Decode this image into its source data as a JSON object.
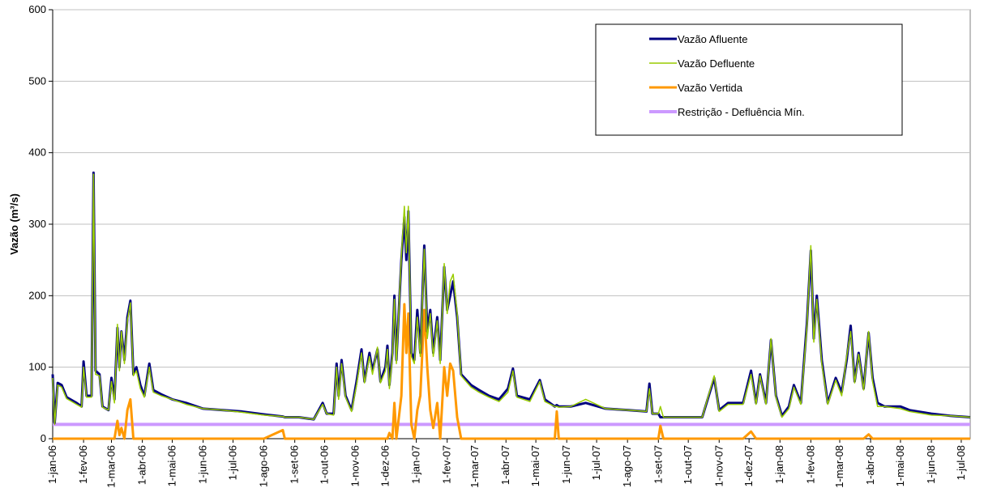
{
  "chart_data": {
    "type": "line",
    "y_label": "Vazão (m³/s)",
    "ylim": [
      0,
      600
    ],
    "yticks": [
      0,
      100,
      200,
      300,
      400,
      500,
      600
    ],
    "xlim": [
      "2006-01-01",
      "2008-07-10"
    ],
    "xticks": [
      {
        "value": "2006-01-01",
        "label": "1-jan-06"
      },
      {
        "value": "2006-02-01",
        "label": "1-fev-06"
      },
      {
        "value": "2006-03-01",
        "label": "1-mar-06"
      },
      {
        "value": "2006-04-01",
        "label": "1-abr-06"
      },
      {
        "value": "2006-05-01",
        "label": "1-mai-06"
      },
      {
        "value": "2006-06-01",
        "label": "1-jun-06"
      },
      {
        "value": "2006-07-01",
        "label": "1-jul-06"
      },
      {
        "value": "2006-08-01",
        "label": "1-ago-06"
      },
      {
        "value": "2006-09-01",
        "label": "1-set-06"
      },
      {
        "value": "2006-10-01",
        "label": "1-out-06"
      },
      {
        "value": "2006-11-01",
        "label": "1-nov-06"
      },
      {
        "value": "2006-12-01",
        "label": "1-dez-06"
      },
      {
        "value": "2007-01-01",
        "label": "1-jan-07"
      },
      {
        "value": "2007-02-01",
        "label": "1-fev-07"
      },
      {
        "value": "2007-03-01",
        "label": "1-mar-07"
      },
      {
        "value": "2007-04-01",
        "label": "1-abr-07"
      },
      {
        "value": "2007-05-01",
        "label": "1-mai-07"
      },
      {
        "value": "2007-06-01",
        "label": "1-jun-07"
      },
      {
        "value": "2007-07-01",
        "label": "1-jul-07"
      },
      {
        "value": "2007-08-01",
        "label": "1-ago-07"
      },
      {
        "value": "2007-09-01",
        "label": "1-set-07"
      },
      {
        "value": "2007-10-01",
        "label": "1-out-07"
      },
      {
        "value": "2007-11-01",
        "label": "1-nov-07"
      },
      {
        "value": "2007-12-01",
        "label": "1-dez-07"
      },
      {
        "value": "2008-01-01",
        "label": "1-jan-08"
      },
      {
        "value": "2008-02-01",
        "label": "1-fev-08"
      },
      {
        "value": "2008-03-01",
        "label": "1-mar-08"
      },
      {
        "value": "2008-04-01",
        "label": "1-abr-08"
      },
      {
        "value": "2008-05-01",
        "label": "1-mai-08"
      },
      {
        "value": "2008-06-01",
        "label": "1-jun-08"
      },
      {
        "value": "2008-07-01",
        "label": "1-jul-08"
      }
    ],
    "grid": true,
    "legend": "top-right",
    "x": [
      "2006-01-01",
      "2006-01-03",
      "2006-01-06",
      "2006-01-10",
      "2006-01-15",
      "2006-01-25",
      "2006-01-30",
      "2006-02-01",
      "2006-02-04",
      "2006-02-09",
      "2006-02-11",
      "2006-02-13",
      "2006-02-17",
      "2006-02-20",
      "2006-02-26",
      "2006-03-01",
      "2006-03-04",
      "2006-03-07",
      "2006-03-09",
      "2006-03-11",
      "2006-03-14",
      "2006-03-17",
      "2006-03-20",
      "2006-03-23",
      "2006-03-26",
      "2006-03-30",
      "2006-04-03",
      "2006-04-08",
      "2006-04-12",
      "2006-04-20",
      "2006-05-01",
      "2006-05-15",
      "2006-06-01",
      "2006-06-20",
      "2006-07-10",
      "2006-08-01",
      "2006-08-20",
      "2006-08-22",
      "2006-09-05",
      "2006-09-20",
      "2006-09-29",
      "2006-10-03",
      "2006-10-10",
      "2006-10-13",
      "2006-10-15",
      "2006-10-18",
      "2006-10-22",
      "2006-10-28",
      "2006-11-02",
      "2006-11-07",
      "2006-11-10",
      "2006-11-15",
      "2006-11-18",
      "2006-11-23",
      "2006-11-26",
      "2006-12-01",
      "2006-12-03",
      "2006-12-05",
      "2006-12-08",
      "2006-12-10",
      "2006-12-12",
      "2006-12-17",
      "2006-12-20",
      "2006-12-22",
      "2006-12-24",
      "2006-12-27",
      "2006-12-30",
      "2007-01-02",
      "2007-01-05",
      "2007-01-09",
      "2007-01-12",
      "2007-01-15",
      "2007-01-18",
      "2007-01-22",
      "2007-01-25",
      "2007-01-29",
      "2007-02-01",
      "2007-02-04",
      "2007-02-07",
      "2007-02-11",
      "2007-02-15",
      "2007-02-25",
      "2007-03-05",
      "2007-03-15",
      "2007-03-25",
      "2007-04-03",
      "2007-04-08",
      "2007-04-12",
      "2007-04-25",
      "2007-05-05",
      "2007-05-10",
      "2007-05-20",
      "2007-05-22",
      "2007-05-24",
      "2007-06-05",
      "2007-06-20",
      "2007-07-10",
      "2007-08-01",
      "2007-08-20",
      "2007-08-23",
      "2007-08-26",
      "2007-09-01",
      "2007-09-03",
      "2007-09-06",
      "2007-09-25",
      "2007-10-15",
      "2007-10-27",
      "2007-11-01",
      "2007-11-10",
      "2007-11-25",
      "2007-12-03",
      "2007-12-08",
      "2007-12-12",
      "2007-12-18",
      "2007-12-23",
      "2007-12-28",
      "2008-01-03",
      "2008-01-10",
      "2008-01-15",
      "2008-01-22",
      "2008-01-28",
      "2008-02-01",
      "2008-02-04",
      "2008-02-07",
      "2008-02-12",
      "2008-02-18",
      "2008-02-26",
      "2008-03-03",
      "2008-03-08",
      "2008-03-12",
      "2008-03-16",
      "2008-03-20",
      "2008-03-25",
      "2008-03-30",
      "2008-04-03",
      "2008-04-08",
      "2008-04-15",
      "2008-05-01",
      "2008-05-10",
      "2008-06-01",
      "2008-06-20",
      "2008-07-10"
    ],
    "series": [
      {
        "name": "Vazão Afluente",
        "color": "#000080",
        "width": 3,
        "values": [
          90,
          22,
          78,
          75,
          58,
          50,
          45,
          108,
          60,
          60,
          372,
          95,
          90,
          45,
          40,
          85,
          55,
          155,
          100,
          150,
          110,
          170,
          193,
          90,
          100,
          75,
          60,
          105,
          68,
          62,
          55,
          50,
          42,
          40,
          38,
          34,
          31,
          30,
          30,
          27,
          50,
          35,
          35,
          105,
          60,
          110,
          60,
          40,
          80,
          125,
          80,
          120,
          95,
          125,
          80,
          100,
          130,
          75,
          120,
          200,
          110,
          250,
          310,
          250,
          318,
          120,
          110,
          180,
          120,
          270,
          150,
          180,
          120,
          170,
          110,
          240,
          180,
          200,
          220,
          170,
          90,
          75,
          68,
          60,
          55,
          70,
          98,
          60,
          55,
          82,
          55,
          45,
          47,
          45,
          45,
          50,
          42,
          40,
          38,
          77,
          35,
          35,
          30,
          30,
          30,
          30,
          85,
          40,
          50,
          50,
          95,
          50,
          90,
          50,
          138,
          60,
          32,
          45,
          75,
          50,
          160,
          263,
          140,
          200,
          110,
          50,
          85,
          65,
          110,
          158,
          80,
          120,
          70,
          148,
          85,
          50,
          45,
          45,
          40,
          35,
          32,
          30
        ]
      },
      {
        "name": "Vazão Defluente",
        "color": "#99cc00",
        "width": 1.5,
        "values": [
          85,
          20,
          75,
          72,
          56,
          48,
          44,
          100,
          58,
          58,
          370,
          90,
          88,
          44,
          40,
          80,
          50,
          160,
          95,
          150,
          105,
          165,
          190,
          88,
          95,
          70,
          58,
          100,
          65,
          60,
          55,
          48,
          42,
          40,
          37,
          33,
          31,
          30,
          30,
          27,
          48,
          35,
          33,
          100,
          55,
          105,
          58,
          38,
          75,
          120,
          78,
          115,
          90,
          128,
          78,
          95,
          125,
          70,
          115,
          195,
          105,
          255,
          325,
          260,
          325,
          115,
          105,
          170,
          115,
          265,
          140,
          175,
          115,
          165,
          105,
          245,
          175,
          220,
          230,
          175,
          88,
          72,
          65,
          58,
          52,
          65,
          95,
          58,
          52,
          80,
          52,
          45,
          45,
          44,
          45,
          55,
          42,
          40,
          38,
          70,
          35,
          35,
          45,
          30,
          30,
          30,
          88,
          38,
          48,
          48,
          90,
          48,
          88,
          48,
          140,
          58,
          30,
          42,
          72,
          48,
          155,
          270,
          135,
          195,
          105,
          48,
          82,
          60,
          115,
          150,
          78,
          118,
          68,
          150,
          80,
          45,
          45,
          42,
          38,
          33,
          32,
          30
        ]
      },
      {
        "name": "Vazão Vertida",
        "color": "#ff9900",
        "width": 3,
        "values": [
          0,
          0,
          0,
          0,
          0,
          0,
          0,
          0,
          0,
          0,
          0,
          0,
          0,
          0,
          0,
          0,
          0,
          25,
          5,
          15,
          0,
          40,
          55,
          0,
          0,
          0,
          0,
          0,
          0,
          0,
          0,
          0,
          0,
          0,
          0,
          0,
          12,
          0,
          0,
          0,
          0,
          0,
          0,
          0,
          0,
          0,
          0,
          0,
          0,
          0,
          0,
          0,
          0,
          0,
          0,
          0,
          0,
          8,
          0,
          50,
          0,
          60,
          188,
          120,
          175,
          20,
          0,
          40,
          60,
          180,
          100,
          40,
          15,
          50,
          0,
          100,
          60,
          105,
          95,
          30,
          0,
          0,
          0,
          0,
          0,
          0,
          0,
          0,
          0,
          0,
          0,
          0,
          38,
          0,
          0,
          0,
          0,
          0,
          0,
          0,
          0,
          0,
          18,
          0,
          0,
          0,
          0,
          0,
          0,
          0,
          10,
          0,
          0,
          0,
          0,
          0,
          0,
          0,
          0,
          0,
          0,
          0,
          0,
          0,
          0,
          0,
          0,
          0,
          0,
          0,
          0,
          0,
          0,
          6,
          0,
          0,
          0,
          0,
          0,
          0,
          0,
          0
        ]
      },
      {
        "name": "Restrição - Defluência Mín.",
        "color": "#cc99ff",
        "width": 4,
        "values": [
          20,
          20,
          20,
          20,
          20,
          20,
          20,
          20,
          20,
          20,
          20,
          20,
          20,
          20,
          20,
          20,
          20,
          20,
          20,
          20,
          20,
          20,
          20,
          20,
          20,
          20,
          20,
          20,
          20,
          20,
          20,
          20,
          20,
          20,
          20,
          20,
          20,
          20,
          20,
          20,
          20,
          20,
          20,
          20,
          20,
          20,
          20,
          20,
          20,
          20,
          20,
          20,
          20,
          20,
          20,
          20,
          20,
          20,
          20,
          20,
          20,
          20,
          20,
          20,
          20,
          20,
          20,
          20,
          20,
          20,
          20,
          20,
          20,
          20,
          20,
          20,
          20,
          20,
          20,
          20,
          20,
          20,
          20,
          20,
          20,
          20,
          20,
          20,
          20,
          20,
          20,
          20,
          20,
          20,
          20,
          20,
          20,
          20,
          20,
          20,
          20,
          20,
          20,
          20,
          20,
          20,
          20,
          20,
          20,
          20,
          20,
          20,
          20,
          20,
          20,
          20,
          20,
          20,
          20,
          20,
          20,
          20,
          20,
          20,
          20,
          20,
          20,
          20,
          20,
          20,
          20,
          20,
          20,
          20,
          20,
          20,
          20,
          20,
          20,
          20,
          20,
          20
        ]
      }
    ]
  }
}
